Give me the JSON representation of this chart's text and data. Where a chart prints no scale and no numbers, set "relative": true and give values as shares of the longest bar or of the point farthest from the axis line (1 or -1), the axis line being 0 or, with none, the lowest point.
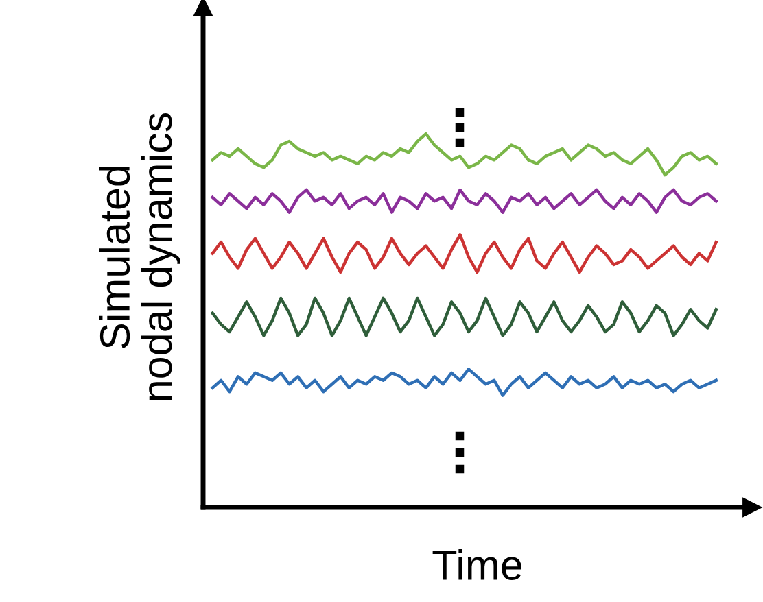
{
  "chart_data": {
    "type": "line",
    "relative": true,
    "xlabel": "Time",
    "ylabel": "Simulated\nnodal dynamics",
    "tick_labels": false,
    "categories": [
      null,
      null,
      null,
      null,
      null,
      null,
      null,
      null,
      null,
      null,
      null,
      null,
      null,
      null,
      null,
      null,
      null,
      null,
      null,
      null,
      null,
      null,
      null,
      null,
      null,
      null,
      null,
      null,
      null,
      null,
      null,
      null,
      null,
      null,
      null,
      null,
      null,
      null,
      null,
      null,
      null,
      null,
      null,
      null,
      null,
      null,
      null,
      null,
      null,
      null,
      null,
      null,
      null,
      null,
      null,
      null,
      null,
      null,
      null,
      null
    ],
    "series": [
      {
        "color": "#7ab648",
        "values": [
          0.93,
          0.95,
          0.94,
          0.96,
          0.94,
          0.92,
          0.91,
          0.93,
          0.97,
          0.98,
          0.96,
          0.95,
          0.94,
          0.95,
          0.93,
          0.94,
          0.93,
          0.92,
          0.94,
          0.93,
          0.95,
          0.94,
          0.96,
          0.95,
          0.98,
          1.0,
          0.97,
          0.95,
          0.93,
          0.94,
          0.91,
          0.92,
          0.94,
          0.93,
          0.95,
          0.97,
          0.96,
          0.93,
          0.92,
          0.94,
          0.95,
          0.96,
          0.93,
          0.95,
          0.97,
          0.96,
          0.94,
          0.95,
          0.93,
          0.92,
          0.94,
          0.96,
          0.93,
          0.89,
          0.91,
          0.94,
          0.95,
          0.93,
          0.94,
          0.92
        ]
      },
      {
        "color": "#8b2f9a",
        "values": [
          0.83,
          0.81,
          0.84,
          0.82,
          0.8,
          0.83,
          0.81,
          0.84,
          0.82,
          0.79,
          0.83,
          0.85,
          0.82,
          0.83,
          0.81,
          0.84,
          0.8,
          0.82,
          0.83,
          0.81,
          0.84,
          0.79,
          0.83,
          0.82,
          0.8,
          0.84,
          0.82,
          0.83,
          0.8,
          0.85,
          0.82,
          0.81,
          0.84,
          0.82,
          0.79,
          0.83,
          0.82,
          0.84,
          0.81,
          0.83,
          0.8,
          0.82,
          0.84,
          0.81,
          0.83,
          0.85,
          0.82,
          0.8,
          0.83,
          0.81,
          0.84,
          0.82,
          0.79,
          0.83,
          0.85,
          0.82,
          0.81,
          0.83,
          0.84,
          0.82
        ]
      },
      {
        "color": "#cc3333",
        "values": [
          0.68,
          0.71,
          0.67,
          0.64,
          0.69,
          0.72,
          0.68,
          0.64,
          0.67,
          0.71,
          0.68,
          0.64,
          0.68,
          0.72,
          0.67,
          0.63,
          0.68,
          0.71,
          0.69,
          0.64,
          0.67,
          0.72,
          0.68,
          0.65,
          0.68,
          0.7,
          0.67,
          0.64,
          0.69,
          0.73,
          0.67,
          0.63,
          0.68,
          0.71,
          0.67,
          0.64,
          0.69,
          0.72,
          0.66,
          0.64,
          0.68,
          0.71,
          0.67,
          0.63,
          0.67,
          0.7,
          0.68,
          0.65,
          0.66,
          0.69,
          0.67,
          0.64,
          0.66,
          0.68,
          0.7,
          0.67,
          0.65,
          0.68,
          0.66,
          0.71
        ]
      },
      {
        "color": "#2f5e3a",
        "values": [
          0.52,
          0.49,
          0.47,
          0.51,
          0.55,
          0.51,
          0.46,
          0.5,
          0.56,
          0.52,
          0.46,
          0.49,
          0.56,
          0.52,
          0.46,
          0.5,
          0.56,
          0.51,
          0.46,
          0.51,
          0.56,
          0.52,
          0.47,
          0.5,
          0.56,
          0.51,
          0.46,
          0.49,
          0.55,
          0.52,
          0.47,
          0.5,
          0.56,
          0.51,
          0.46,
          0.49,
          0.55,
          0.52,
          0.47,
          0.51,
          0.55,
          0.5,
          0.47,
          0.5,
          0.54,
          0.51,
          0.47,
          0.49,
          0.55,
          0.52,
          0.47,
          0.5,
          0.54,
          0.52,
          0.46,
          0.49,
          0.53,
          0.5,
          0.48,
          0.53
        ]
      },
      {
        "color": "#2f6fb5",
        "values": [
          0.32,
          0.34,
          0.31,
          0.35,
          0.33,
          0.36,
          0.35,
          0.34,
          0.36,
          0.33,
          0.35,
          0.32,
          0.34,
          0.31,
          0.33,
          0.35,
          0.32,
          0.34,
          0.33,
          0.35,
          0.34,
          0.36,
          0.35,
          0.33,
          0.34,
          0.32,
          0.35,
          0.33,
          0.36,
          0.34,
          0.37,
          0.35,
          0.33,
          0.34,
          0.3,
          0.33,
          0.35,
          0.32,
          0.34,
          0.36,
          0.34,
          0.32,
          0.35,
          0.33,
          0.34,
          0.32,
          0.33,
          0.35,
          0.32,
          0.34,
          0.33,
          0.34,
          0.32,
          0.33,
          0.31,
          0.33,
          0.34,
          0.32,
          0.33,
          0.34
        ]
      }
    ]
  }
}
